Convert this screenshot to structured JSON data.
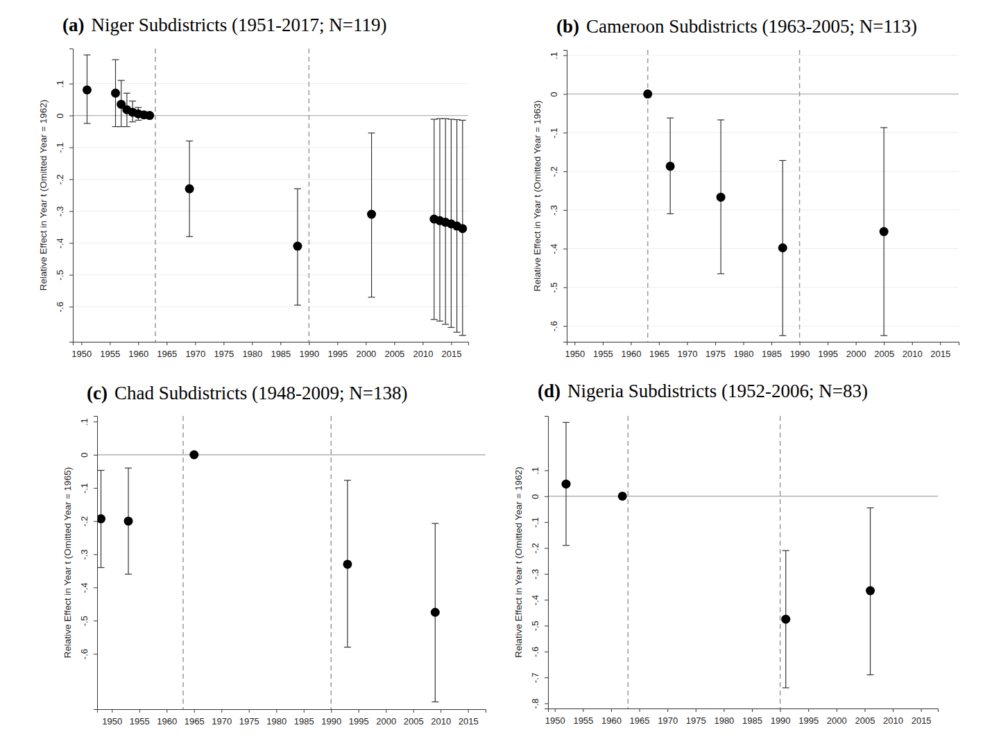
{
  "chart_data": [
    {
      "type": "scatter",
      "label": "(a)",
      "title": "Niger Subdistricts (1951-2017; N=119)",
      "y_label": "Relative Effect in Year t (Omitted Year = 1962)",
      "x": [
        1951,
        1956,
        1957,
        1958,
        1959,
        1960,
        1961,
        1962,
        1969,
        1988,
        2001,
        2012,
        2013,
        2014,
        2015,
        2016,
        2017
      ],
      "values": [
        0.08,
        0.07,
        0.035,
        0.018,
        0.01,
        0.005,
        0.002,
        0,
        -0.23,
        -0.41,
        -0.31,
        -0.325,
        -0.33,
        -0.335,
        -0.34,
        -0.347,
        -0.355
      ],
      "lower": [
        -0.025,
        -0.035,
        -0.035,
        -0.035,
        -0.02,
        -0.015,
        -0.005,
        null,
        -0.38,
        -0.595,
        -0.57,
        -0.64,
        -0.645,
        -0.655,
        -0.665,
        -0.68,
        -0.69
      ],
      "upper": [
        0.19,
        0.175,
        0.11,
        0.07,
        0.045,
        0.025,
        0.01,
        null,
        -0.08,
        -0.23,
        -0.055,
        -0.012,
        -0.01,
        -0.01,
        -0.012,
        -0.013,
        -0.015
      ],
      "xlim": [
        1948.5,
        2018
      ],
      "ylim": [
        -0.71,
        0.21
      ],
      "xticks": [
        1950,
        1955,
        1960,
        1965,
        1970,
        1975,
        1980,
        1985,
        1990,
        1995,
        2000,
        2005,
        2010,
        2015
      ],
      "yticks": [
        {
          "value": 0.1,
          "label": ".1"
        },
        0,
        {
          "value": -0.1,
          "label": "-.1"
        },
        {
          "value": -0.2,
          "label": "-.2"
        },
        {
          "value": -0.3,
          "label": "-.3"
        },
        {
          "value": -0.4,
          "label": "-.4"
        },
        {
          "value": -0.5,
          "label": "-.5"
        },
        {
          "value": -0.6,
          "label": "-.6"
        }
      ],
      "vlines": [
        1963,
        1990
      ],
      "hline": 0,
      "grid": true,
      "color": "#000000",
      "marker": "circle"
    },
    {
      "type": "scatter",
      "label": "(b)",
      "title": "Cameroon Subdistricts (1963-2005; N=113)",
      "y_label": "Relative Effect in Year t (Omitted Year = 1963)",
      "x": [
        1963,
        1967,
        1976,
        1987,
        2005
      ],
      "values": [
        0,
        -0.187,
        -0.267,
        -0.398,
        -0.356
      ],
      "lower": [
        null,
        -0.31,
        -0.465,
        -0.625,
        -0.625
      ],
      "upper": [
        null,
        -0.062,
        -0.067,
        -0.172,
        -0.087
      ],
      "xlim": [
        1948.6,
        2018.3
      ],
      "ylim": [
        -0.641,
        0.114
      ],
      "xticks": [
        1950,
        1955,
        1960,
        1965,
        1970,
        1975,
        1980,
        1985,
        1990,
        1995,
        2000,
        2005,
        2010,
        2015
      ],
      "yticks": [
        {
          "value": 0.1,
          "label": ".1"
        },
        0,
        {
          "value": -0.1,
          "label": "-.1"
        },
        {
          "value": -0.2,
          "label": "-.2"
        },
        {
          "value": -0.3,
          "label": "-.3"
        },
        {
          "value": -0.4,
          "label": "-.4"
        },
        {
          "value": -0.5,
          "label": "-.5"
        },
        {
          "value": -0.6,
          "label": "-.6"
        }
      ],
      "vlines": [
        1963,
        1990
      ],
      "hline": 0,
      "grid": true,
      "color": "#000000",
      "marker": "circle"
    },
    {
      "type": "scatter",
      "label": "(c)",
      "title": "Chad Subdistricts (1948-2009; N=138)",
      "y_label": "Relative Effect in Year t (Omitted Year = 1965)",
      "x": [
        1948,
        1953,
        1965,
        1993,
        2009
      ],
      "values": [
        -0.193,
        -0.2,
        0,
        -0.33,
        -0.475
      ],
      "lower": [
        -0.34,
        -0.36,
        null,
        -0.58,
        -0.745
      ],
      "upper": [
        -0.047,
        -0.04,
        null,
        -0.077,
        -0.207
      ],
      "xlim": [
        1947.3,
        2018.2
      ],
      "ylim": [
        -0.767,
        0.117
      ],
      "xticks": [
        1950,
        1955,
        1960,
        1965,
        1970,
        1975,
        1980,
        1985,
        1990,
        1995,
        2000,
        2005,
        2010,
        2015
      ],
      "yticks": [
        {
          "value": 0.1,
          "label": ".1"
        },
        0,
        {
          "value": -0.1,
          "label": "-.1"
        },
        {
          "value": -0.2,
          "label": "-.2"
        },
        {
          "value": -0.3,
          "label": "-.3"
        },
        {
          "value": -0.4,
          "label": "-.4"
        },
        {
          "value": -0.5,
          "label": "-.5"
        },
        {
          "value": -0.6,
          "label": "-.6"
        }
      ],
      "vlines": [
        1963,
        1990
      ],
      "hline": 0,
      "grid": false,
      "color": "#000000",
      "marker": "circle"
    },
    {
      "type": "scatter",
      "label": "(d)",
      "title": "Nigeria Subdistricts (1952-2006; N=83)",
      "y_label": "Relative Effect in Year t (Omitted Year = 1962)",
      "x": [
        1952,
        1962,
        1991,
        2006
      ],
      "values": [
        0.047,
        0,
        -0.475,
        -0.365
      ],
      "lower": [
        -0.19,
        null,
        -0.74,
        -0.69
      ],
      "upper": [
        0.285,
        null,
        -0.21,
        -0.045
      ],
      "xlim": [
        1948.8,
        2018
      ],
      "ylim": [
        -0.82,
        0.31
      ],
      "xticks": [
        1950,
        1955,
        1960,
        1965,
        1970,
        1975,
        1980,
        1985,
        1990,
        1995,
        2000,
        2005,
        2010,
        2015
      ],
      "yticks": [
        {
          "value": 0.1,
          "label": ".1"
        },
        0,
        {
          "value": -0.1,
          "label": "-.1"
        },
        {
          "value": -0.2,
          "label": "-.2"
        },
        {
          "value": -0.3,
          "label": "-.3"
        },
        {
          "value": -0.4,
          "label": "-.4"
        },
        {
          "value": -0.5,
          "label": "-.5"
        },
        {
          "value": -0.6,
          "label": "-.6"
        },
        {
          "value": -0.7,
          "label": "-.7"
        },
        {
          "value": -0.8,
          "label": "-.8"
        }
      ],
      "vlines": [
        1963,
        1990
      ],
      "hline": 0,
      "grid": false,
      "color": "#000000",
      "marker": "circle"
    }
  ]
}
